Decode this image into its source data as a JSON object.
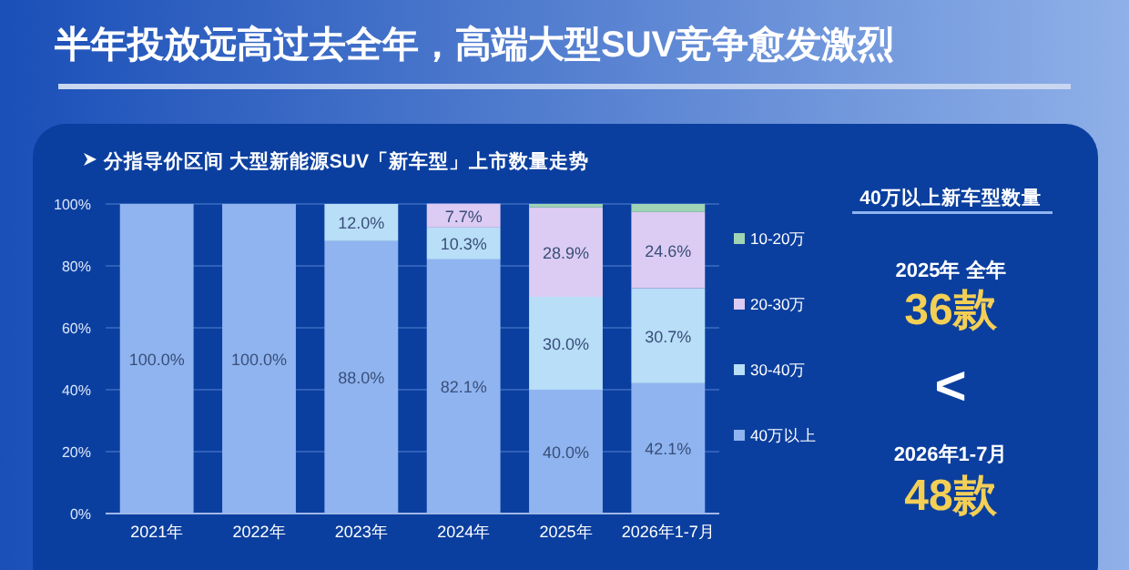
{
  "chart_data": [
    {
      "type": "bar",
      "title": "半年投放远高过去全年，高端大型SUV竞争愈发激烈",
      "subtitle": "分指导价区间 大型新能源SUV「新车型」上市数量走势",
      "categories": [
        "2021年",
        "2022年",
        "2023年",
        "2024年",
        "2025年",
        "2026年1-7月"
      ],
      "stacked": true,
      "series": [
        {
          "name": "40万以上",
          "color": "#8fb4f0",
          "values": [
            100,
            100,
            88,
            82.1,
            40,
            42.1
          ],
          "value_labels": [
            "100.0%",
            "100.0%",
            "88.0%",
            "82.1%",
            "40.0%",
            "42.1%"
          ]
        },
        {
          "name": "30-40万",
          "color": "#b8def8",
          "values": [
            0,
            0,
            12,
            10.3,
            30,
            30.7
          ],
          "value_labels": [
            null,
            null,
            "12.0%",
            "10.3%",
            "30.0%",
            "30.7%"
          ]
        },
        {
          "name": "20-30万",
          "color": "#dccbf2",
          "values": [
            0,
            0,
            0,
            7.7,
            28.9,
            24.6
          ],
          "value_labels": [
            null,
            null,
            null,
            "7.7%",
            "28.9%",
            "24.6%"
          ]
        },
        {
          "name": "10-20万",
          "color": "#9fd4b4",
          "values": [
            0,
            0,
            0,
            0,
            1.1,
            2.6
          ],
          "value_labels": [
            null,
            null,
            null,
            null,
            null,
            null
          ]
        }
      ],
      "ylim": [
        0,
        100
      ],
      "yticks": [
        {
          "value": 0,
          "label": "0%"
        },
        {
          "value": 20,
          "label": "20%"
        },
        {
          "value": 40,
          "label": "40%"
        },
        {
          "value": 60,
          "label": "60%"
        },
        {
          "value": 80,
          "label": "80%"
        },
        {
          "value": 100,
          "label": "100%"
        }
      ],
      "grid": "y",
      "legend": "right"
    },
    {
      "type": "other",
      "title": "40万以上新车型数量",
      "annotations": [
        "2025年 全年",
        "36款",
        "<",
        "2026年1-7月",
        "48款"
      ]
    }
  ]
}
